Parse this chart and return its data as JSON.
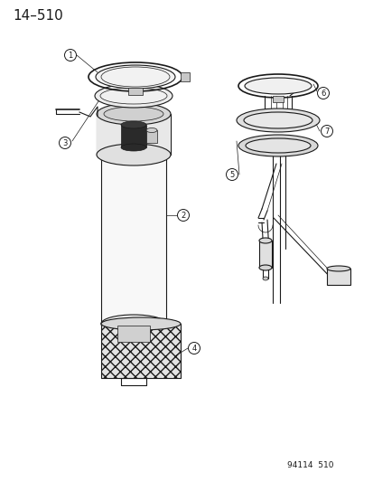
{
  "title": "14–510",
  "footer": "94114  510",
  "bg_color": "#ffffff",
  "line_color": "#1a1a1a",
  "title_fontsize": 11,
  "footer_fontsize": 6.5
}
